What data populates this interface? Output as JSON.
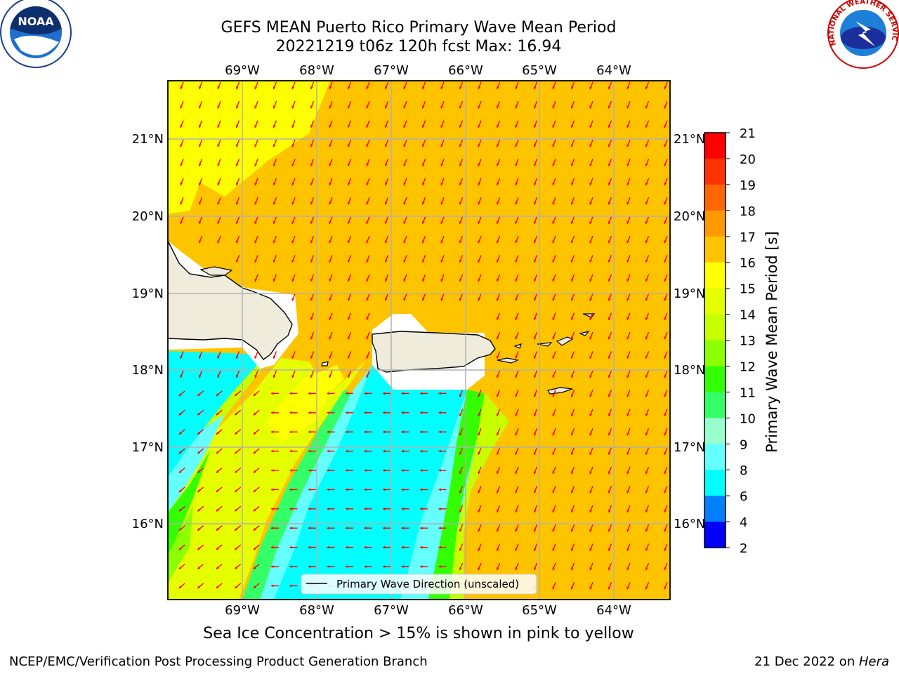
{
  "header": {
    "title": "GEFS MEAN Puerto Rico Primary Wave Mean Period",
    "subtitle": "20221219 t06z 120h fcst   Max: 16.94"
  },
  "logos": {
    "left": "NOAA",
    "right": "NATIONAL WEATHER SERVICE"
  },
  "map": {
    "lon_labels": [
      "69°W",
      "68°W",
      "67°W",
      "66°W",
      "65°W",
      "64°W"
    ],
    "lat_labels": [
      "21°N",
      "20°N",
      "19°N",
      "18°N",
      "17°N",
      "16°N"
    ],
    "lon_range": [
      -70.0,
      -63.25
    ],
    "lat_range": [
      15.0,
      21.75
    ],
    "legend": "Primary Wave Direction (unscaled)",
    "arrow_color": "#ff0000",
    "land_color": "#efecdc"
  },
  "colorbar": {
    "label": "Primary Wave Mean Period [s]",
    "ticks": [
      "21",
      "20",
      "19",
      "18",
      "17",
      "16",
      "15",
      "14",
      "13",
      "12",
      "11",
      "10",
      "9",
      "8",
      "6",
      "4",
      "2"
    ],
    "colors": [
      "#ff0000",
      "#ff3300",
      "#ff6600",
      "#ff9900",
      "#ffc400",
      "#ffff00",
      "#e6ff00",
      "#c8ff00",
      "#8cff00",
      "#33ff00",
      "#33ff66",
      "#99ffcc",
      "#66ffff",
      "#00ffff",
      "#0080ff",
      "#0000ff"
    ]
  },
  "note": "Sea Ice Concentration > 15% is shown in pink to yellow",
  "footer": {
    "left": "NCEP/EMC/Verification Post Processing Product Generation Branch",
    "right_date": "21 Dec 2022 on ",
    "right_host": "Hera"
  }
}
